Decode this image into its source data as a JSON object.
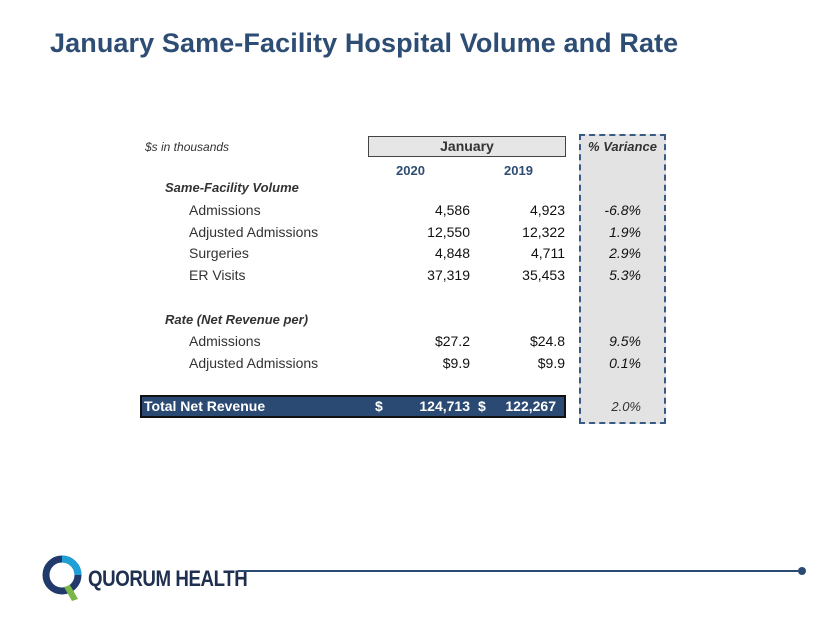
{
  "title": "January Same-Facility Hospital Volume and Rate",
  "table": {
    "units_note": "$s in thousands",
    "group_header": "January",
    "variance_header": "% Variance",
    "years": [
      "2020",
      "2019"
    ],
    "volume_section": "Same-Facility Volume",
    "volume_rows": [
      {
        "label": "Admissions",
        "v2020": "4,586",
        "v2019": "4,923",
        "variance": "-6.8%"
      },
      {
        "label": "Adjusted Admissions",
        "v2020": "12,550",
        "v2019": "12,322",
        "variance": "1.9%"
      },
      {
        "label": "Surgeries",
        "v2020": "4,848",
        "v2019": "4,711",
        "variance": "2.9%"
      },
      {
        "label": "ER Visits",
        "v2020": "37,319",
        "v2019": "35,453",
        "variance": "5.3%"
      }
    ],
    "rate_section": "Rate (Net Revenue per)",
    "rate_rows": [
      {
        "label": "Admissions",
        "v2020": "$27.2",
        "v2019": "$24.8",
        "variance": "9.5%"
      },
      {
        "label": "Adjusted Admissions",
        "v2020": "$9.9",
        "v2019": "$9.9",
        "variance": "0.1%"
      }
    ],
    "total": {
      "label": "Total Net Revenue",
      "currency": "$",
      "v2020": "124,713",
      "v2019": "122,267",
      "variance": "2.0%"
    }
  },
  "footer": {
    "brand": "QUORUM HEALTH"
  },
  "colors": {
    "title": "#2e4d74",
    "total_bar": "#2b4a73",
    "variance_bg": "#e3e3e3"
  }
}
